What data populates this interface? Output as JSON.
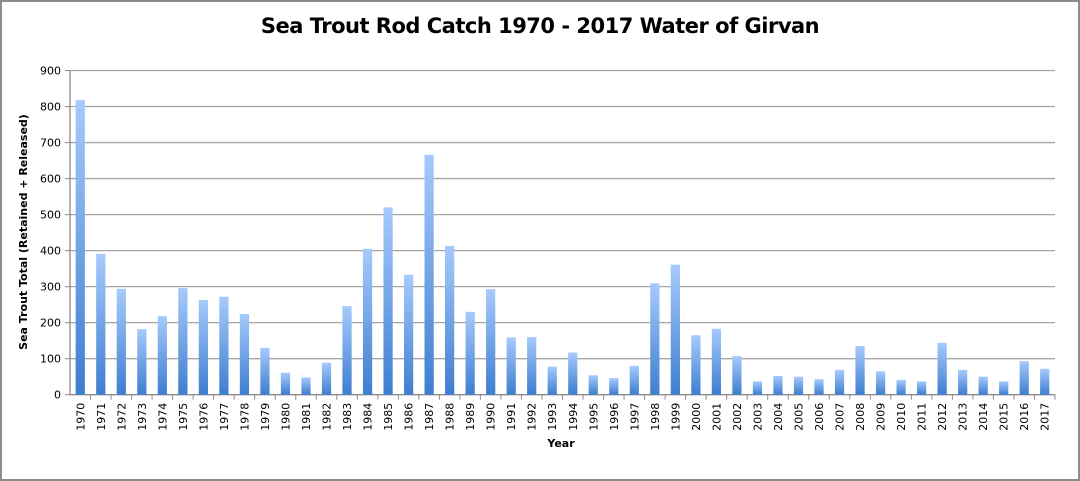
{
  "chart_data": {
    "type": "bar",
    "title": "Sea Trout Rod Catch 1970 - 2017 Water of Girvan",
    "xlabel": "Year",
    "ylabel": "Sea Trout Total (Retained + Released)",
    "ylim": [
      0,
      900
    ],
    "yticks": [
      0,
      100,
      200,
      300,
      400,
      500,
      600,
      700,
      800,
      900
    ],
    "grid": true,
    "legend": "none",
    "bar_color_top": "#a4c8fb",
    "bar_color_bottom": "#3f7fd0",
    "categories": [
      "1970",
      "1971",
      "1972",
      "1973",
      "1974",
      "1975",
      "1976",
      "1977",
      "1978",
      "1979",
      "1980",
      "1981",
      "1982",
      "1983",
      "1984",
      "1985",
      "1986",
      "1987",
      "1988",
      "1989",
      "1990",
      "1991",
      "1992",
      "1993",
      "1994",
      "1995",
      "1996",
      "1997",
      "1998",
      "1999",
      "2000",
      "2001",
      "2002",
      "2003",
      "2004",
      "2005",
      "2006",
      "2007",
      "2008",
      "2009",
      "2010",
      "2011",
      "2012",
      "2013",
      "2014",
      "2015",
      "2016",
      "2017"
    ],
    "values": [
      818,
      391,
      294,
      182,
      218,
      296,
      263,
      272,
      224,
      130,
      61,
      48,
      89,
      246,
      405,
      520,
      333,
      666,
      413,
      230,
      293,
      159,
      160,
      78,
      117,
      54,
      46,
      80,
      309,
      361,
      165,
      183,
      107,
      37,
      52,
      50,
      43,
      69,
      135,
      65,
      41,
      37,
      144,
      69,
      50,
      37,
      93,
      72
    ]
  }
}
